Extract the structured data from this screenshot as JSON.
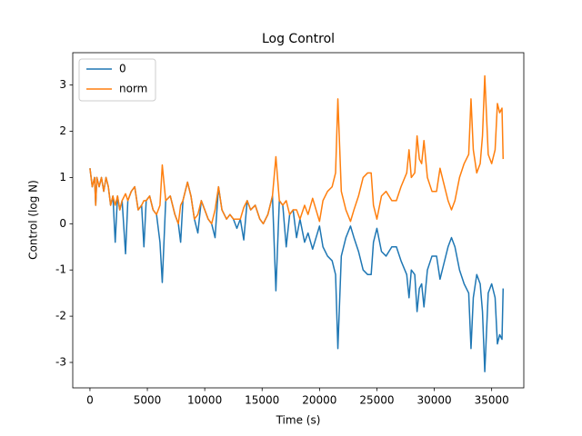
{
  "chart_data": {
    "type": "line",
    "title": "Log Control",
    "x_label": "Time (s)",
    "y_label": "Control (log N)",
    "x": [
      0,
      200,
      400,
      500,
      600,
      800,
      1000,
      1200,
      1400,
      1600,
      1800,
      2000,
      2200,
      2400,
      2600,
      2800,
      3100,
      3300,
      3600,
      3900,
      4200,
      4500,
      4700,
      4900,
      5200,
      5500,
      5800,
      6100,
      6300,
      6600,
      7000,
      7400,
      7700,
      7900,
      8100,
      8500,
      8800,
      9100,
      9400,
      9700,
      10000,
      10300,
      10600,
      10900,
      11200,
      11500,
      11900,
      12200,
      12500,
      12800,
      13100,
      13400,
      13700,
      14000,
      14400,
      14800,
      15100,
      15500,
      15900,
      16200,
      16500,
      16800,
      17100,
      17400,
      17700,
      18000,
      18300,
      18700,
      19000,
      19400,
      19700,
      20000,
      20300,
      20700,
      21100,
      21400,
      21600,
      21900,
      22300,
      22700,
      23000,
      23400,
      23800,
      24200,
      24500,
      24700,
      25000,
      25400,
      25800,
      26300,
      26700,
      27100,
      27600,
      27800,
      28000,
      28300,
      28500,
      28700,
      28900,
      29100,
      29400,
      29800,
      30200,
      30500,
      30800,
      31200,
      31500,
      31800,
      32200,
      32600,
      33000,
      33200,
      33400,
      33700,
      34000,
      34200,
      34400,
      34700,
      35000,
      35300,
      35500,
      35700,
      35900,
      36000
    ],
    "series": [
      {
        "name": "0",
        "color": "#1f77b4",
        "values": [
          1.2,
          0.8,
          1.0,
          0.4,
          1.0,
          0.8,
          1.0,
          0.7,
          1.0,
          0.8,
          0.4,
          0.6,
          -0.4,
          0.6,
          0.3,
          0.5,
          -0.65,
          0.5,
          0.7,
          0.8,
          0.3,
          0.4,
          -0.5,
          0.5,
          0.6,
          0.3,
          0.2,
          -0.4,
          -1.27,
          0.5,
          0.6,
          0.2,
          0.0,
          -0.4,
          0.5,
          0.9,
          0.6,
          0.1,
          -0.2,
          0.5,
          0.3,
          0.1,
          0.0,
          -0.3,
          0.8,
          0.3,
          0.1,
          0.2,
          0.1,
          -0.1,
          0.1,
          -0.35,
          0.5,
          0.3,
          0.4,
          0.1,
          0.0,
          0.2,
          0.6,
          -1.45,
          0.5,
          0.4,
          -0.5,
          0.2,
          0.3,
          -0.3,
          0.1,
          -0.4,
          -0.2,
          -0.55,
          -0.3,
          -0.05,
          -0.5,
          -0.7,
          -0.8,
          -1.1,
          -2.7,
          -0.7,
          -0.3,
          -0.05,
          -0.3,
          -0.6,
          -1.0,
          -1.1,
          -1.1,
          -0.4,
          -0.1,
          -0.6,
          -0.7,
          -0.5,
          -0.5,
          -0.8,
          -1.1,
          -1.6,
          -1.0,
          -1.1,
          -1.9,
          -1.4,
          -1.3,
          -1.8,
          -1.0,
          -0.7,
          -0.7,
          -1.2,
          -0.9,
          -0.5,
          -0.3,
          -0.5,
          -1.0,
          -1.3,
          -1.5,
          -2.7,
          -1.6,
          -1.1,
          -1.3,
          -1.9,
          -3.2,
          -1.5,
          -1.3,
          -1.6,
          -2.6,
          -2.4,
          -2.5,
          -1.4
        ]
      },
      {
        "name": "norm",
        "color": "#ff7f0e",
        "values": [
          1.2,
          0.8,
          1.0,
          0.4,
          1.0,
          0.8,
          1.0,
          0.7,
          1.0,
          0.8,
          0.4,
          0.6,
          0.4,
          0.6,
          0.3,
          0.5,
          0.65,
          0.5,
          0.7,
          0.8,
          0.3,
          0.4,
          0.5,
          0.5,
          0.6,
          0.3,
          0.2,
          0.4,
          1.27,
          0.5,
          0.6,
          0.2,
          0.0,
          0.4,
          0.5,
          0.9,
          0.6,
          0.1,
          0.2,
          0.5,
          0.3,
          0.1,
          0.0,
          0.3,
          0.8,
          0.3,
          0.1,
          0.2,
          0.1,
          0.1,
          0.1,
          0.35,
          0.5,
          0.3,
          0.4,
          0.1,
          0.0,
          0.2,
          0.6,
          1.45,
          0.5,
          0.4,
          0.5,
          0.2,
          0.3,
          0.3,
          0.1,
          0.4,
          0.2,
          0.55,
          0.3,
          0.05,
          0.5,
          0.7,
          0.8,
          1.1,
          2.7,
          0.7,
          0.3,
          0.05,
          0.3,
          0.6,
          1.0,
          1.1,
          1.1,
          0.4,
          0.1,
          0.6,
          0.7,
          0.5,
          0.5,
          0.8,
          1.1,
          1.6,
          1.0,
          1.1,
          1.9,
          1.4,
          1.3,
          1.8,
          1.0,
          0.7,
          0.7,
          1.2,
          0.9,
          0.5,
          0.3,
          0.5,
          1.0,
          1.3,
          1.5,
          2.7,
          1.6,
          1.1,
          1.3,
          1.9,
          3.2,
          1.5,
          1.3,
          1.6,
          2.6,
          2.4,
          2.5,
          1.4
        ]
      }
    ],
    "xlim": [
      -1500,
      37800
    ],
    "ylim": [
      -3.55,
      3.7
    ],
    "xticks": [
      0,
      5000,
      10000,
      15000,
      20000,
      25000,
      30000,
      35000
    ],
    "yticks": [
      -3,
      -2,
      -1,
      0,
      1,
      2,
      3
    ],
    "legend": "upper left"
  }
}
